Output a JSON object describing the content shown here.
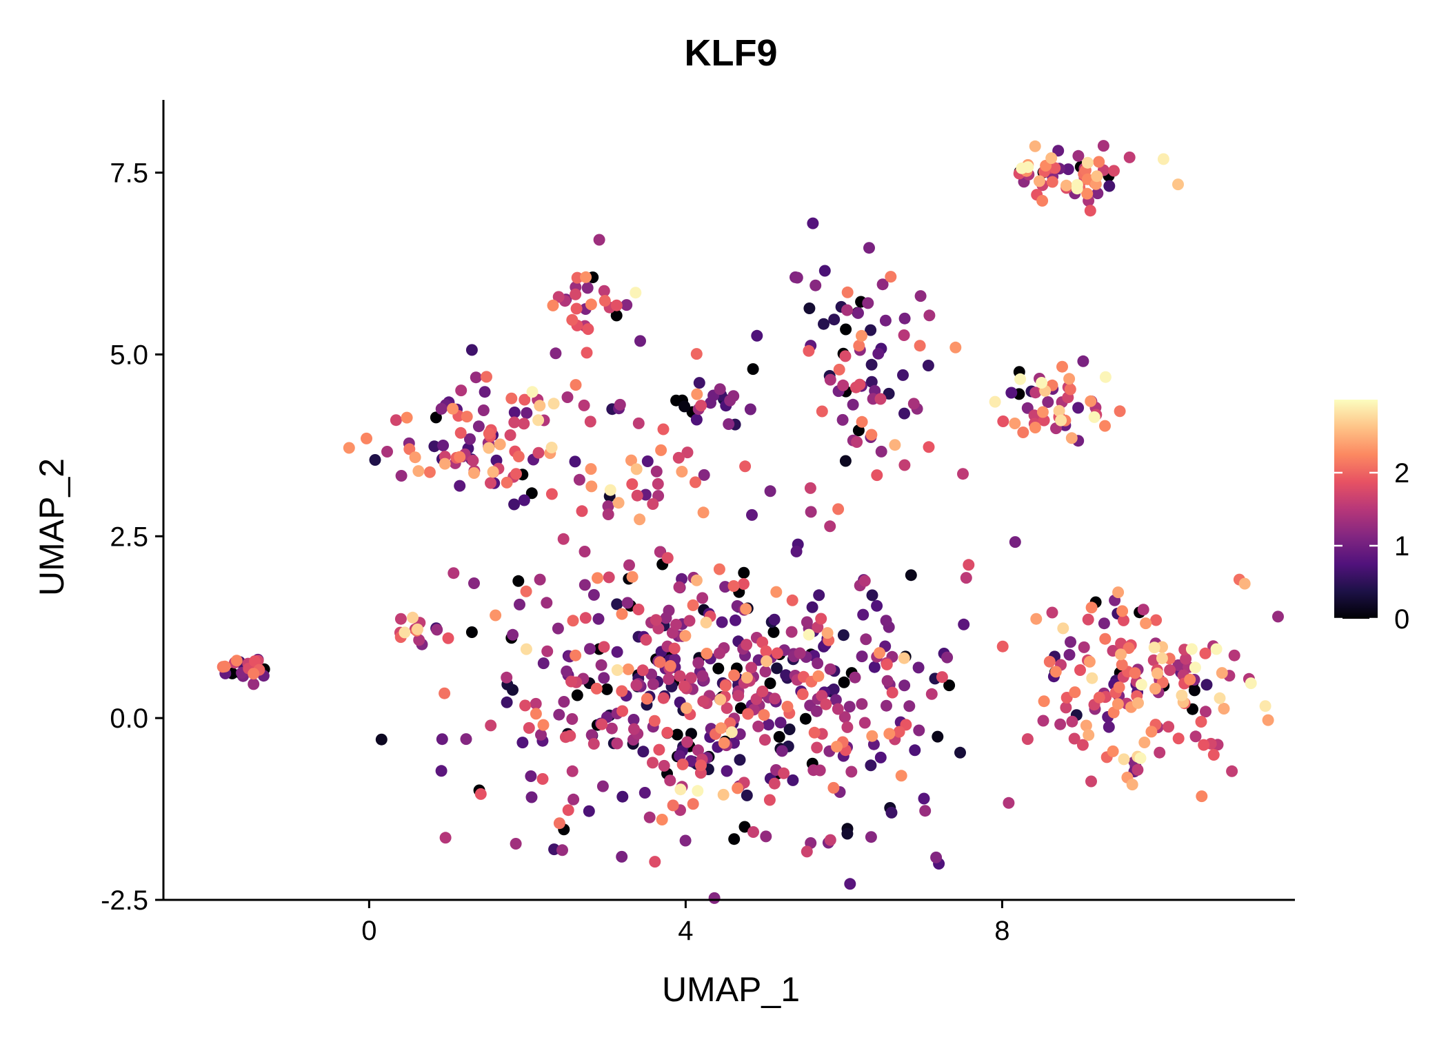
{
  "chart_data": {
    "type": "scatter",
    "title": "KLF9",
    "xlabel": "UMAP_1",
    "ylabel": "UMAP_2",
    "xlim": [
      -2.6,
      11.7
    ],
    "ylim": [
      -2.5,
      8.5
    ],
    "x_ticks": [
      0,
      4,
      8
    ],
    "x_tick_labels": [
      "0",
      "4",
      "8"
    ],
    "y_ticks": [
      -2.5,
      0.0,
      2.5,
      5.0,
      7.5
    ],
    "y_tick_labels": [
      "-2.5",
      "0.0",
      "2.5",
      "5.0",
      "7.5"
    ],
    "grid": false,
    "legend": {
      "position": "right",
      "type": "colorbar",
      "min": 0,
      "max": 3,
      "ticks": [
        0,
        1,
        2
      ],
      "tick_labels": [
        "0",
        "1",
        "2"
      ]
    },
    "colormap": {
      "name": "magma",
      "stops": [
        "#000004",
        "#1d1147",
        "#51127c",
        "#822681",
        "#b73779",
        "#e75263",
        "#fc8961",
        "#fec488",
        "#fcfdbf"
      ]
    },
    "clusters": [
      {
        "name": "far-left",
        "cx": -1.5,
        "cy": 0.68,
        "sx": 0.18,
        "sy": 0.1,
        "n": 22,
        "mean": 1.5
      },
      {
        "name": "left-upper",
        "cx": 1.3,
        "cy": 3.9,
        "sx": 0.55,
        "sy": 0.45,
        "n": 85,
        "mean": 1.6
      },
      {
        "name": "left-mid",
        "cx": 0.6,
        "cy": 1.2,
        "sx": 0.25,
        "sy": 0.15,
        "n": 14,
        "mean": 2.2
      },
      {
        "name": "top-mid-small",
        "cx": 2.8,
        "cy": 5.7,
        "sx": 0.3,
        "sy": 0.3,
        "n": 28,
        "mean": 1.9
      },
      {
        "name": "mid-upper",
        "cx": 3.3,
        "cy": 3.4,
        "sx": 0.7,
        "sy": 0.6,
        "n": 42,
        "mean": 1.8
      },
      {
        "name": "mid-cluster-a",
        "cx": 4.4,
        "cy": 4.3,
        "sx": 0.25,
        "sy": 0.12,
        "n": 20,
        "mean": 1.0
      },
      {
        "name": "right-upper",
        "cx": 6.2,
        "cy": 4.7,
        "sx": 0.55,
        "sy": 0.75,
        "n": 75,
        "mean": 1.3
      },
      {
        "name": "top-right",
        "cx": 8.9,
        "cy": 7.5,
        "sx": 0.45,
        "sy": 0.18,
        "n": 55,
        "mean": 1.9
      },
      {
        "name": "right-mid",
        "cx": 8.8,
        "cy": 4.2,
        "sx": 0.45,
        "sy": 0.35,
        "n": 48,
        "mean": 2.0
      },
      {
        "name": "main-blob",
        "cx": 4.5,
        "cy": 0.3,
        "sx": 1.55,
        "sy": 1.0,
        "n": 500,
        "mean": 1.3
      },
      {
        "name": "bottom-right",
        "cx": 9.8,
        "cy": 0.5,
        "sx": 0.65,
        "sy": 0.6,
        "n": 150,
        "mean": 1.8
      }
    ],
    "annotations": []
  }
}
